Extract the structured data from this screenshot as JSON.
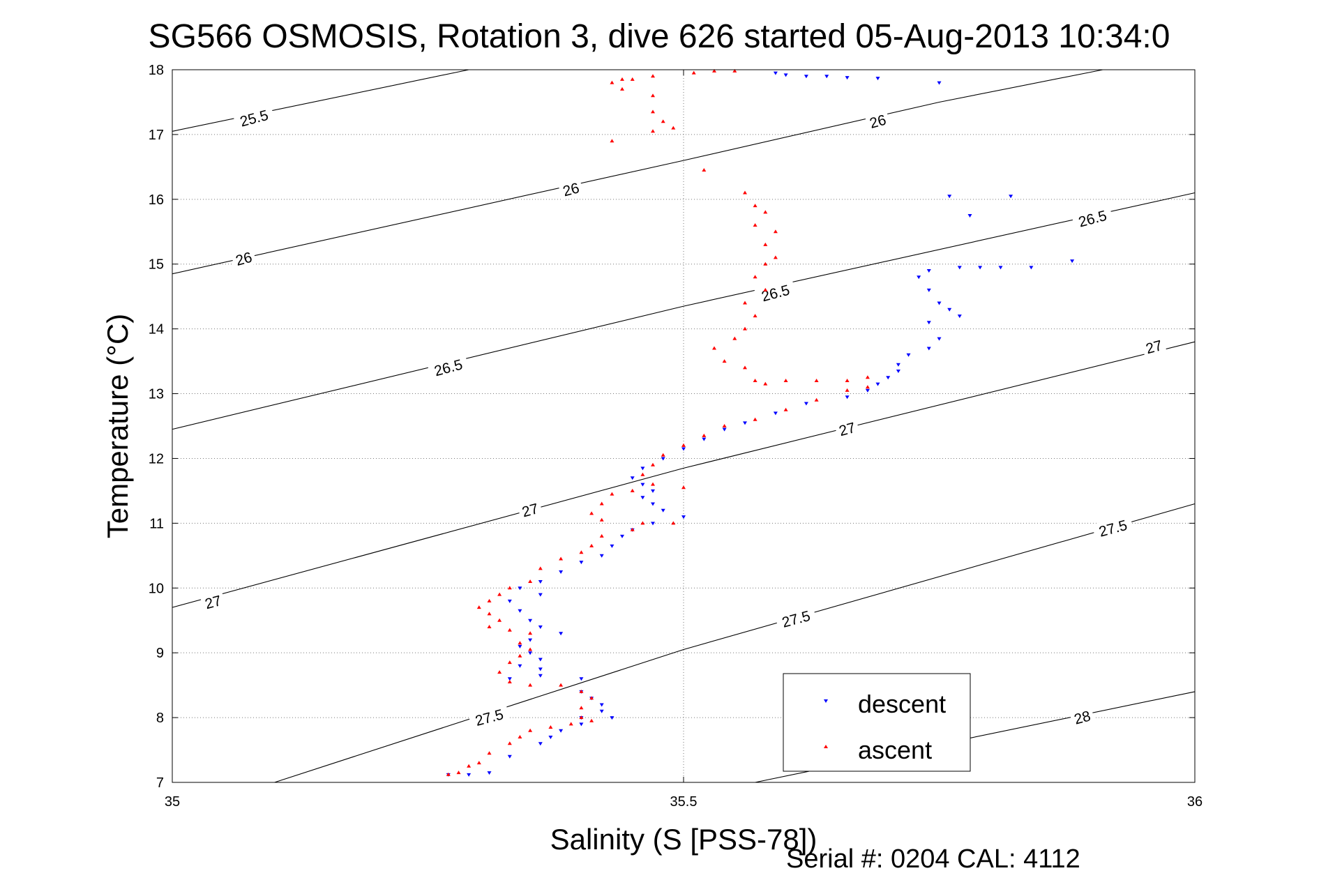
{
  "chart_data": {
    "type": "scatter",
    "title": "SG566 OSMOSIS, Rotation 3, dive 626 started 05-Aug-2013 10:34:0",
    "xlabel": "Salinity (S [PSS-78])",
    "ylabel": "Temperature (°C)",
    "xlim": [
      35,
      36
    ],
    "ylim": [
      7,
      18
    ],
    "xticks": [
      "35",
      "35.5",
      "36"
    ],
    "yticks": [
      "7",
      "8",
      "9",
      "10",
      "11",
      "12",
      "13",
      "14",
      "15",
      "16",
      "17",
      "18"
    ],
    "grid": true,
    "legend_position": "bottom-right",
    "footer": "Serial #: 0204  CAL: 4112",
    "isopycnals": [
      {
        "level": "25.5",
        "points": [
          [
            35.0,
            17.05
          ],
          [
            35.29,
            18.0
          ]
        ]
      },
      {
        "level": "26",
        "points": [
          [
            35.0,
            14.85
          ],
          [
            35.5,
            16.6
          ],
          [
            35.75,
            17.5
          ],
          [
            35.91,
            18.0
          ]
        ]
      },
      {
        "level": "26.5",
        "points": [
          [
            35.0,
            12.45
          ],
          [
            35.5,
            14.35
          ],
          [
            36.0,
            16.1
          ]
        ]
      },
      {
        "level": "27",
        "points": [
          [
            35.0,
            9.7
          ],
          [
            35.5,
            11.85
          ],
          [
            36.0,
            13.8
          ]
        ]
      },
      {
        "level": "27.5",
        "points": [
          [
            35.1,
            7.0
          ],
          [
            35.5,
            9.05
          ],
          [
            36.0,
            11.3
          ]
        ]
      },
      {
        "level": "28",
        "points": [
          [
            35.57,
            7.0
          ],
          [
            36.0,
            8.4
          ]
        ]
      }
    ],
    "isopycnal_labels": [
      {
        "text": "25.5",
        "x": 35.08,
        "y": 17.25,
        "rot": -15
      },
      {
        "text": "26",
        "x": 35.07,
        "y": 15.08,
        "rot": -15
      },
      {
        "text": "26",
        "x": 35.39,
        "y": 16.15,
        "rot": -15
      },
      {
        "text": "26",
        "x": 35.69,
        "y": 17.2,
        "rot": -15
      },
      {
        "text": "26.5",
        "x": 35.27,
        "y": 13.4,
        "rot": -15
      },
      {
        "text": "26.5",
        "x": 35.59,
        "y": 14.55,
        "rot": -15
      },
      {
        "text": "26.5",
        "x": 35.9,
        "y": 15.7,
        "rot": -15
      },
      {
        "text": "27",
        "x": 35.04,
        "y": 9.78,
        "rot": -15
      },
      {
        "text": "27",
        "x": 35.35,
        "y": 11.2,
        "rot": -15
      },
      {
        "text": "27",
        "x": 35.66,
        "y": 12.45,
        "rot": -15
      },
      {
        "text": "27",
        "x": 35.96,
        "y": 13.72,
        "rot": -15
      },
      {
        "text": "27.5",
        "x": 35.31,
        "y": 8.0,
        "rot": -15
      },
      {
        "text": "27.5",
        "x": 35.61,
        "y": 9.52,
        "rot": -15
      },
      {
        "text": "27.5",
        "x": 35.92,
        "y": 10.92,
        "rot": -15
      },
      {
        "text": "28",
        "x": 35.89,
        "y": 8.0,
        "rot": -15
      }
    ],
    "series": [
      {
        "name": "descent",
        "color": "#0000ff",
        "marker": "triangle-down",
        "points": [
          [
            35.59,
            17.95
          ],
          [
            35.6,
            17.92
          ],
          [
            35.62,
            17.9
          ],
          [
            35.64,
            17.9
          ],
          [
            35.66,
            17.88
          ],
          [
            35.69,
            17.87
          ],
          [
            35.75,
            17.8
          ],
          [
            35.76,
            16.05
          ],
          [
            35.82,
            16.05
          ],
          [
            35.78,
            15.75
          ],
          [
            35.88,
            15.05
          ],
          [
            35.74,
            14.9
          ],
          [
            35.77,
            14.95
          ],
          [
            35.79,
            14.95
          ],
          [
            35.81,
            14.95
          ],
          [
            35.84,
            14.95
          ],
          [
            35.73,
            14.8
          ],
          [
            35.74,
            14.6
          ],
          [
            35.75,
            14.4
          ],
          [
            35.74,
            14.1
          ],
          [
            35.76,
            14.3
          ],
          [
            35.77,
            14.2
          ],
          [
            35.75,
            13.85
          ],
          [
            35.74,
            13.7
          ],
          [
            35.72,
            13.6
          ],
          [
            35.71,
            13.45
          ],
          [
            35.71,
            13.35
          ],
          [
            35.7,
            13.25
          ],
          [
            35.69,
            13.15
          ],
          [
            35.68,
            13.05
          ],
          [
            35.66,
            12.95
          ],
          [
            35.62,
            12.85
          ],
          [
            35.59,
            12.7
          ],
          [
            35.56,
            12.55
          ],
          [
            35.54,
            12.45
          ],
          [
            35.52,
            12.3
          ],
          [
            35.5,
            12.15
          ],
          [
            35.48,
            12.0
          ],
          [
            35.46,
            11.85
          ],
          [
            35.45,
            11.7
          ],
          [
            35.46,
            11.6
          ],
          [
            35.47,
            11.5
          ],
          [
            35.46,
            11.4
          ],
          [
            35.47,
            11.3
          ],
          [
            35.48,
            11.2
          ],
          [
            35.5,
            11.1
          ],
          [
            35.47,
            11.0
          ],
          [
            35.45,
            10.9
          ],
          [
            35.44,
            10.8
          ],
          [
            35.43,
            10.65
          ],
          [
            35.42,
            10.5
          ],
          [
            35.4,
            10.4
          ],
          [
            35.38,
            10.25
          ],
          [
            35.36,
            10.1
          ],
          [
            35.34,
            10.0
          ],
          [
            35.36,
            9.9
          ],
          [
            35.33,
            9.8
          ],
          [
            35.34,
            9.65
          ],
          [
            35.35,
            9.5
          ],
          [
            35.36,
            9.4
          ],
          [
            35.38,
            9.3
          ],
          [
            35.35,
            9.2
          ],
          [
            35.34,
            9.1
          ],
          [
            35.35,
            9.0
          ],
          [
            35.36,
            8.9
          ],
          [
            35.34,
            8.8
          ],
          [
            35.36,
            8.75
          ],
          [
            35.33,
            8.6
          ],
          [
            35.36,
            8.65
          ],
          [
            35.4,
            8.6
          ],
          [
            35.4,
            8.4
          ],
          [
            35.41,
            8.3
          ],
          [
            35.42,
            8.2
          ],
          [
            35.42,
            8.1
          ],
          [
            35.4,
            8.0
          ],
          [
            35.43,
            8.0
          ],
          [
            35.4,
            7.9
          ],
          [
            35.38,
            7.8
          ],
          [
            35.37,
            7.7
          ],
          [
            35.36,
            7.6
          ],
          [
            35.33,
            7.4
          ],
          [
            35.31,
            7.15
          ],
          [
            35.29,
            7.12
          ],
          [
            35.27,
            7.12
          ]
        ]
      },
      {
        "name": "ascent",
        "color": "#ff0000",
        "marker": "triangle-up",
        "points": [
          [
            35.53,
            17.98
          ],
          [
            35.55,
            17.98
          ],
          [
            35.51,
            17.95
          ],
          [
            35.47,
            17.9
          ],
          [
            35.45,
            17.85
          ],
          [
            35.44,
            17.85
          ],
          [
            35.43,
            17.8
          ],
          [
            35.44,
            17.7
          ],
          [
            35.47,
            17.6
          ],
          [
            35.47,
            17.35
          ],
          [
            35.48,
            17.2
          ],
          [
            35.47,
            17.05
          ],
          [
            35.49,
            17.1
          ],
          [
            35.43,
            16.9
          ],
          [
            35.52,
            16.45
          ],
          [
            35.56,
            16.1
          ],
          [
            35.57,
            15.9
          ],
          [
            35.58,
            15.8
          ],
          [
            35.57,
            15.6
          ],
          [
            35.59,
            15.5
          ],
          [
            35.58,
            15.3
          ],
          [
            35.59,
            15.1
          ],
          [
            35.58,
            15.0
          ],
          [
            35.57,
            14.8
          ],
          [
            35.58,
            14.6
          ],
          [
            35.56,
            14.4
          ],
          [
            35.57,
            14.2
          ],
          [
            35.56,
            14.0
          ],
          [
            35.55,
            13.85
          ],
          [
            35.53,
            13.7
          ],
          [
            35.54,
            13.5
          ],
          [
            35.56,
            13.4
          ],
          [
            35.57,
            13.2
          ],
          [
            35.58,
            13.15
          ],
          [
            35.6,
            13.2
          ],
          [
            35.63,
            13.2
          ],
          [
            35.66,
            13.2
          ],
          [
            35.68,
            13.25
          ],
          [
            35.68,
            13.1
          ],
          [
            35.66,
            13.05
          ],
          [
            35.63,
            12.9
          ],
          [
            35.6,
            12.75
          ],
          [
            35.57,
            12.6
          ],
          [
            35.54,
            12.5
          ],
          [
            35.52,
            12.35
          ],
          [
            35.5,
            12.2
          ],
          [
            35.48,
            12.05
          ],
          [
            35.47,
            11.9
          ],
          [
            35.46,
            11.75
          ],
          [
            35.47,
            11.6
          ],
          [
            35.5,
            11.55
          ],
          [
            35.45,
            11.5
          ],
          [
            35.43,
            11.45
          ],
          [
            35.42,
            11.3
          ],
          [
            35.41,
            11.15
          ],
          [
            35.42,
            11.05
          ],
          [
            35.46,
            11.0
          ],
          [
            35.49,
            11.0
          ],
          [
            35.45,
            10.9
          ],
          [
            35.42,
            10.8
          ],
          [
            35.41,
            10.65
          ],
          [
            35.4,
            10.55
          ],
          [
            35.38,
            10.45
          ],
          [
            35.36,
            10.3
          ],
          [
            35.35,
            10.1
          ],
          [
            35.33,
            10.0
          ],
          [
            35.32,
            9.9
          ],
          [
            35.31,
            9.8
          ],
          [
            35.3,
            9.7
          ],
          [
            35.31,
            9.6
          ],
          [
            35.32,
            9.5
          ],
          [
            35.31,
            9.4
          ],
          [
            35.33,
            9.35
          ],
          [
            35.35,
            9.3
          ],
          [
            35.34,
            9.15
          ],
          [
            35.35,
            9.05
          ],
          [
            35.34,
            8.95
          ],
          [
            35.33,
            8.85
          ],
          [
            35.32,
            8.7
          ],
          [
            35.33,
            8.55
          ],
          [
            35.35,
            8.5
          ],
          [
            35.38,
            8.5
          ],
          [
            35.4,
            8.4
          ],
          [
            35.41,
            8.3
          ],
          [
            35.4,
            8.15
          ],
          [
            35.4,
            8.0
          ],
          [
            35.41,
            7.95
          ],
          [
            35.39,
            7.9
          ],
          [
            35.37,
            7.85
          ],
          [
            35.35,
            7.8
          ],
          [
            35.34,
            7.7
          ],
          [
            35.33,
            7.6
          ],
          [
            35.31,
            7.45
          ],
          [
            35.3,
            7.3
          ],
          [
            35.29,
            7.25
          ],
          [
            35.28,
            7.15
          ],
          [
            35.27,
            7.12
          ]
        ]
      }
    ]
  }
}
